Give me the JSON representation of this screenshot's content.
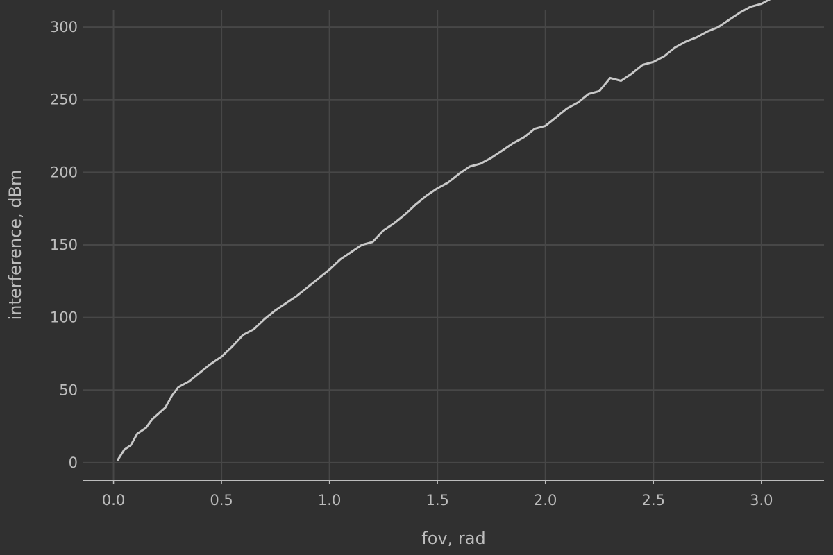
{
  "chart_data": {
    "type": "line",
    "title": "",
    "xlabel": "fov, rad",
    "ylabel": "interference, dBm",
    "xlim": [
      -0.14,
      3.29
    ],
    "ylim": [
      -12,
      312
    ],
    "x_ticks": [
      0.0,
      0.5,
      1.0,
      1.5,
      2.0,
      2.5,
      3.0
    ],
    "x_tick_labels": [
      "0.0",
      "0.5",
      "1.0",
      "1.5",
      "2.0",
      "2.5",
      "3.0"
    ],
    "y_ticks": [
      0,
      50,
      100,
      150,
      200,
      250,
      300
    ],
    "y_tick_labels": [
      "0",
      "50",
      "100",
      "150",
      "200",
      "250",
      "300"
    ],
    "grid": true,
    "legend": "none",
    "colors": {
      "background": "#303030",
      "grid": "#474747",
      "axis": "#bdbdbd",
      "text": "#bcbcbc",
      "line": "#c8c8c8"
    },
    "series": [
      {
        "x": [
          0.02,
          0.05,
          0.08,
          0.11,
          0.15,
          0.18,
          0.21,
          0.24,
          0.27,
          0.3,
          0.35,
          0.4,
          0.45,
          0.5,
          0.55,
          0.6,
          0.65,
          0.7,
          0.75,
          0.8,
          0.85,
          0.9,
          0.95,
          1.0,
          1.05,
          1.1,
          1.15,
          1.2,
          1.25,
          1.3,
          1.35,
          1.4,
          1.45,
          1.5,
          1.55,
          1.6,
          1.65,
          1.7,
          1.75,
          1.8,
          1.85,
          1.9,
          1.95,
          2.0,
          2.05,
          2.1,
          2.15,
          2.2,
          2.25,
          2.3,
          2.35,
          2.4,
          2.45,
          2.5,
          2.55,
          2.6,
          2.65,
          2.7,
          2.75,
          2.8,
          2.85,
          2.9,
          2.95,
          3.0,
          3.05,
          3.1,
          3.14
        ],
        "y": [
          2,
          9,
          12,
          20,
          24,
          30,
          34,
          38,
          46,
          52,
          56,
          62,
          68,
          73,
          80,
          88,
          92,
          99,
          105,
          110,
          115,
          121,
          127,
          133,
          140,
          145,
          150,
          152,
          160,
          165,
          171,
          178,
          184,
          189,
          193,
          199,
          204,
          206,
          210,
          215,
          220,
          224,
          230,
          232,
          238,
          244,
          248,
          254,
          256,
          265,
          263,
          268,
          274,
          276,
          280,
          286,
          290,
          293,
          297,
          300,
          305,
          310,
          314,
          316,
          320,
          326,
          325
        ]
      }
    ]
  }
}
